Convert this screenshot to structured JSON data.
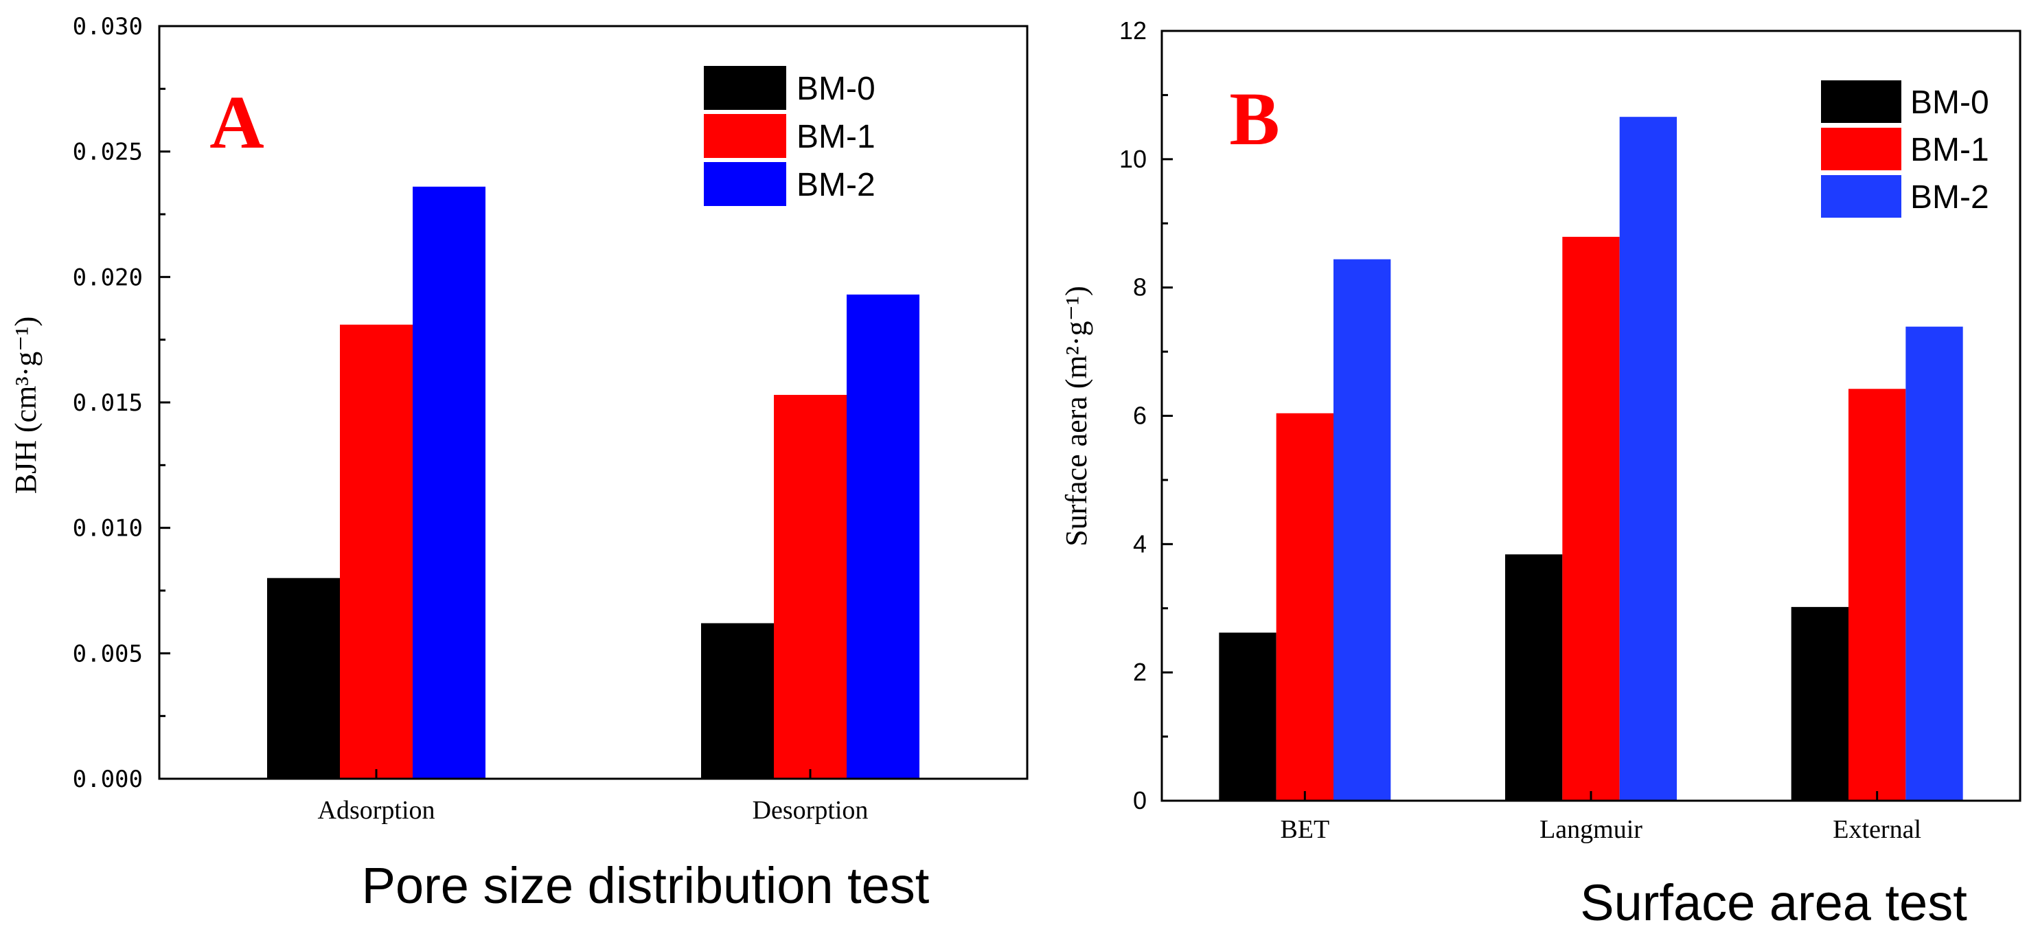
{
  "chart_data": [
    {
      "id": "A",
      "type": "bar",
      "panel_label": "A",
      "title": "",
      "xlabel": "Pore size distribution test",
      "ylabel": "BJH (cm³·g⁻¹)",
      "ylim": [
        0,
        0.03
      ],
      "yticks": [
        "0.000",
        "0.005",
        "0.010",
        "0.015",
        "0.020",
        "0.025",
        "0.030"
      ],
      "categories": [
        "Adsorption",
        "Desorption"
      ],
      "series": [
        {
          "name": "BM-0",
          "color": "#000000",
          "values": [
            0.008,
            0.0062
          ]
        },
        {
          "name": "BM-1",
          "color": "#ff0000",
          "values": [
            0.0181,
            0.0153
          ]
        },
        {
          "name": "BM-2",
          "color": "#0000ff",
          "values": [
            0.0236,
            0.0193
          ]
        }
      ],
      "legend_position": "top-right",
      "panel_label_color": "#ff0000"
    },
    {
      "id": "B",
      "type": "bar",
      "panel_label": "B",
      "title": "",
      "xlabel": "Surface area test",
      "ylabel": "Surface aera (m²·g⁻¹)",
      "ylim": [
        0,
        12
      ],
      "yticks": [
        "0",
        "2",
        "4",
        "6",
        "8",
        "10",
        "12"
      ],
      "categories": [
        "BET",
        "Langmuir",
        "External"
      ],
      "series": [
        {
          "name": "BM-0",
          "color": "#000000",
          "values": [
            2.62,
            3.84,
            3.02
          ]
        },
        {
          "name": "BM-1",
          "color": "#ff0000",
          "values": [
            6.04,
            8.79,
            6.42
          ]
        },
        {
          "name": "BM-2",
          "color": "#1e3cff",
          "values": [
            8.44,
            10.66,
            7.39
          ]
        }
      ],
      "legend_position": "top-right",
      "panel_label_color": "#ff0000"
    }
  ]
}
